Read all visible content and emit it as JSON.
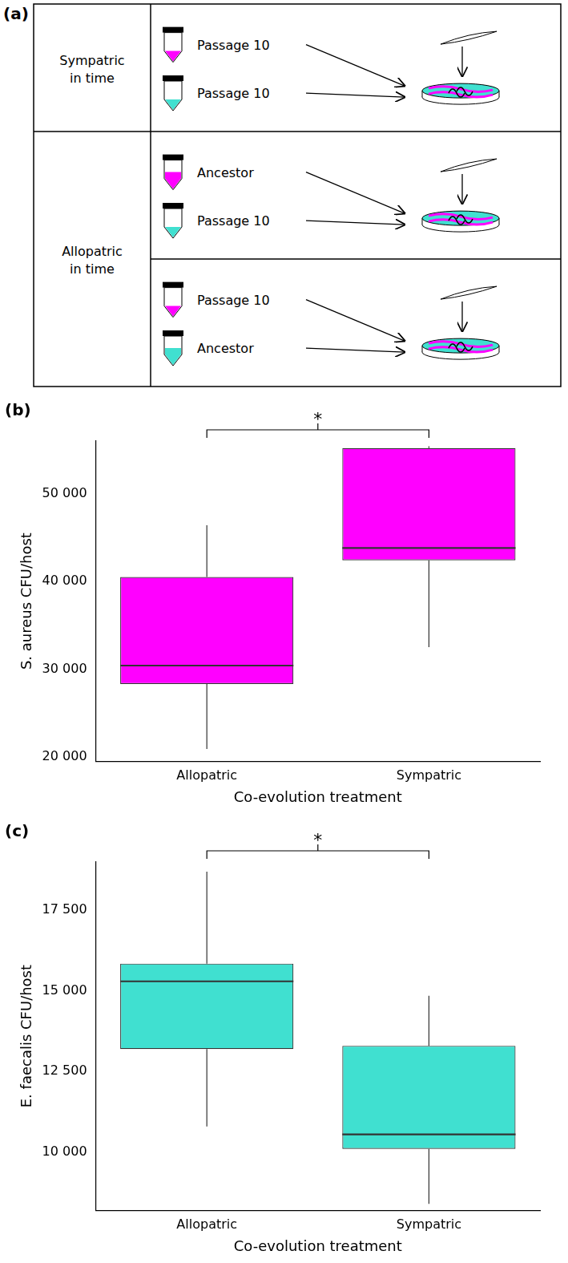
{
  "panel_a": {
    "label": "(a)",
    "rows": [
      {
        "label": "Sympatric in time",
        "pairs": [
          [
            "Passage 10",
            "Passage 10"
          ]
        ]
      },
      {
        "label": "Allopatric in time",
        "pairs": [
          [
            "Ancestor",
            "Passage 10"
          ],
          [
            "Passage 10",
            "Ancestor"
          ]
        ]
      }
    ],
    "colors": [
      "#ff00ff",
      "#40e0d0"
    ]
  },
  "chart_data": [
    {
      "label": "(b)",
      "type": "box",
      "categories": [
        "Allopatric",
        "Sympatric"
      ],
      "boxes": [
        {
          "min": 20900,
          "q1": 28300,
          "median": 30400,
          "q3": 40500,
          "max": 46400
        },
        {
          "min": 32500,
          "q1": 42400,
          "median": 43800,
          "q3": 55200,
          "max": 55400
        }
      ],
      "color": "#ff00ff",
      "y_label": "S. aureus CFU/host",
      "x_label": "Co-evolution treatment",
      "ylim": [
        19500,
        56000
      ],
      "yticks": [
        {
          "value": 20000,
          "label": "20 000"
        },
        {
          "value": 30000,
          "label": "30 000"
        },
        {
          "value": 40000,
          "label": "40 000"
        },
        {
          "value": 50000,
          "label": "50 000"
        }
      ],
      "grid": false,
      "annotations": [
        {
          "text": "*",
          "between": [
            "Allopatric",
            "Sympatric"
          ]
        }
      ]
    },
    {
      "label": "(c)",
      "type": "box",
      "categories": [
        "Allopatric",
        "Sympatric"
      ],
      "boxes": [
        {
          "min": 10800,
          "q1": 13200,
          "median": 15300,
          "q3": 15850,
          "max": 18700
        },
        {
          "min": 8400,
          "q1": 10100,
          "median": 10550,
          "q3": 13300,
          "max": 14850
        }
      ],
      "color": "#40e0d0",
      "y_label": "E. faecalis CFU/host",
      "x_label": "Co-evolution treatment",
      "ylim": [
        8200,
        19000
      ],
      "yticks": [
        {
          "value": 10000,
          "label": "10 000"
        },
        {
          "value": 12500,
          "label": "12 500"
        },
        {
          "value": 15000,
          "label": "15 000"
        },
        {
          "value": 17500,
          "label": "17 500"
        }
      ],
      "grid": false,
      "annotations": [
        {
          "text": "*",
          "between": [
            "Allopatric",
            "Sympatric"
          ]
        }
      ]
    }
  ]
}
